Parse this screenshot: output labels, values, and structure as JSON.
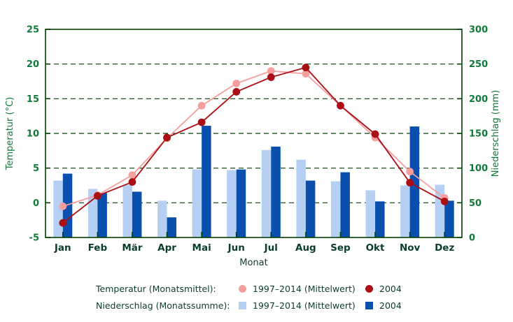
{
  "chart_data": {
    "type": "combo-bar-line",
    "title": "",
    "categories": [
      "Jan",
      "Feb",
      "Mär",
      "Apr",
      "Mai",
      "Jun",
      "Jul",
      "Aug",
      "Sep",
      "Okt",
      "Nov",
      "Dez"
    ],
    "x_axis": {
      "label": "Monat"
    },
    "left_axis": {
      "label": "Temperatur (°C)",
      "min": -5,
      "max": 25,
      "ticks": [
        25,
        20,
        15,
        10,
        5,
        0,
        -5
      ]
    },
    "right_axis": {
      "label": "Niederschlag (mm)",
      "min": 0,
      "max": 300,
      "ticks": [
        300,
        250,
        200,
        150,
        100,
        50,
        0
      ]
    },
    "grid": {
      "horizontal_dashed_at_temp": [
        20,
        15,
        10,
        5,
        0
      ]
    },
    "bar_series": [
      {
        "name": "Niederschlag 1997–2014 (Mittelwert)",
        "axis": "right",
        "color": "#b6d0f4",
        "values": [
          82,
          70,
          76,
          53,
          98,
          97,
          126,
          112,
          81,
          68,
          75,
          76
        ]
      },
      {
        "name": "Niederschlag 2004",
        "axis": "right",
        "color": "#0a4fae",
        "values": [
          92,
          64,
          66,
          29,
          161,
          98,
          131,
          82,
          94,
          52,
          160,
          53
        ]
      }
    ],
    "line_series": [
      {
        "name": "Temperatur 1997–2014 (Mittelwert)",
        "axis": "left",
        "color": "#f59e9e",
        "values": [
          -0.5,
          1.1,
          4.0,
          9.3,
          14.0,
          17.2,
          19.0,
          18.6,
          14.0,
          9.4,
          4.5,
          0.7
        ]
      },
      {
        "name": "Temperatur 2004",
        "axis": "left",
        "color": "#a90f14",
        "values": [
          -2.9,
          1.0,
          3.0,
          9.4,
          11.6,
          16.0,
          18.1,
          19.5,
          14.0,
          9.9,
          2.9,
          0.2
        ]
      }
    ],
    "legend_position": "bottom"
  },
  "legend": {
    "rows": [
      {
        "label": "Temperatur (Monatsmittel):",
        "marker": "circle",
        "entries": [
          {
            "text": "1997–2014 (Mittelwert)",
            "color": "#f59e9e"
          },
          {
            "text": "2004",
            "color": "#a90f14"
          }
        ]
      },
      {
        "label": "Niederschlag (Monatssumme):",
        "marker": "square",
        "entries": [
          {
            "text": "1997–2014 (Mittelwert)",
            "color": "#b6d0f4"
          },
          {
            "text": "2004",
            "color": "#0a4fae"
          }
        ]
      }
    ]
  },
  "style": {
    "axis_color": "#004000",
    "tick_label_color": "#0f7a38",
    "axis_title_color": "#0f7a38",
    "month_label_color": "#0b3d2e",
    "legend_text_color": "#0b3d2e",
    "background": "#ffffff"
  }
}
